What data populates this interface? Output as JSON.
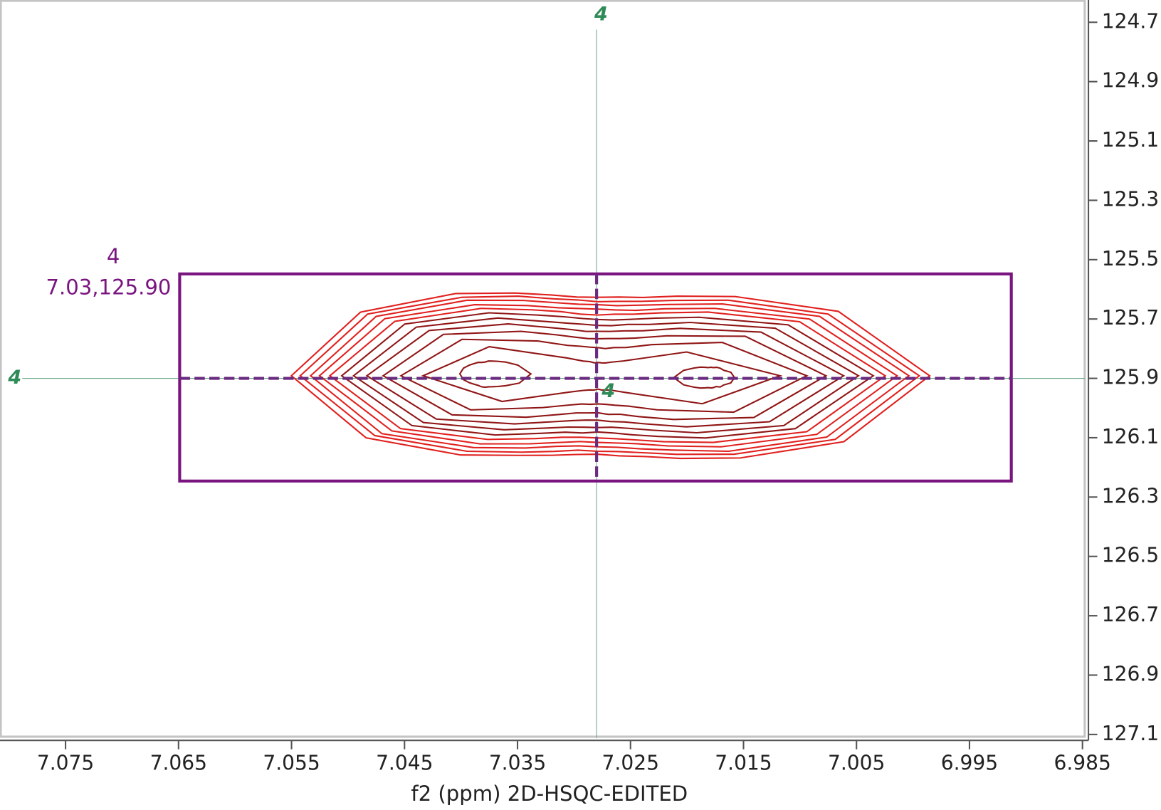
{
  "chart_data": {
    "type": "contour",
    "x_label": "f2 (ppm) 2D-HSQC-EDITED",
    "xlim": [
      7.0808,
      6.9848
    ],
    "ylim": [
      124.625,
      127.1125
    ],
    "xticks": [
      7.075,
      7.065,
      7.055,
      7.045,
      7.035,
      7.025,
      7.015,
      7.005,
      6.995,
      6.985
    ],
    "yticks": [
      124.7,
      124.9,
      125.1,
      125.3,
      125.5,
      125.7,
      125.9,
      126.1,
      126.3,
      126.5,
      126.7,
      126.9,
      127.1
    ],
    "peak": {
      "label": "4",
      "coord_label": "7.03,125.90",
      "x": 7.028,
      "y": 125.9,
      "box": {
        "x": [
          7.0649,
          6.9913
        ],
        "y": [
          125.548,
          126.246
        ]
      }
    }
  }
}
